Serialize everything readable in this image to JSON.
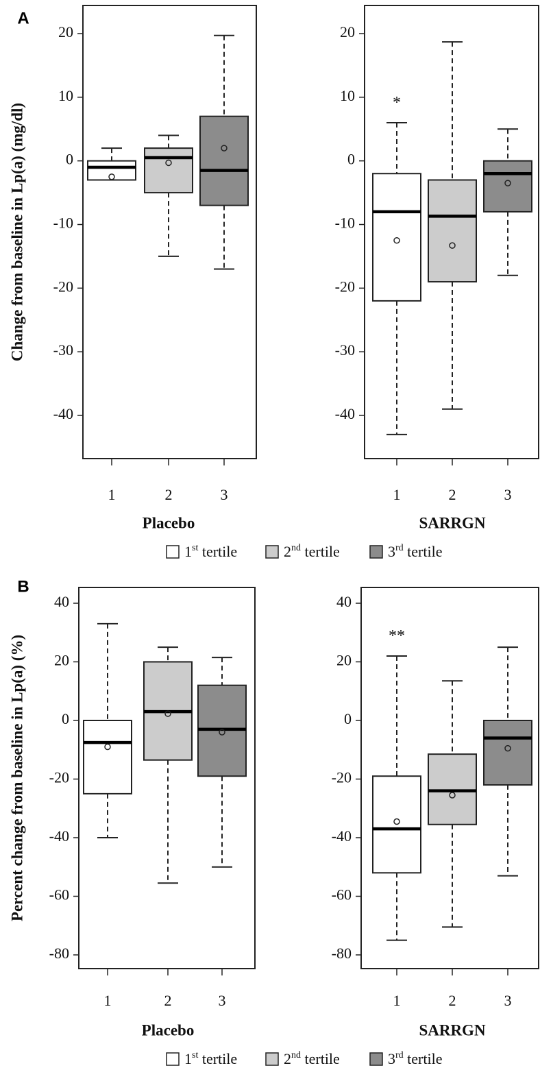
{
  "colors": {
    "tertile1": "#ffffff",
    "tertile2": "#cccccc",
    "tertile3": "#8c8c8c",
    "stroke": "#222222"
  },
  "legend": [
    {
      "num": "1",
      "sup": "st",
      "text": " tertile",
      "color": "#ffffff"
    },
    {
      "num": "2",
      "sup": "nd",
      "text": " tertile",
      "color": "#cccccc"
    },
    {
      "num": "3",
      "sup": "rd",
      "text": " tertile",
      "color": "#8c8c8c"
    }
  ],
  "chart_data": [
    {
      "type": "box",
      "panel_label": "A",
      "ylabel": "Change from baseline in Lp(a) (mg/dl)",
      "ylim": [
        -47.5,
        25
      ],
      "yticks": [
        20,
        10,
        0,
        -10,
        -20,
        -30,
        -40
      ],
      "groups": [
        {
          "name": "Placebo",
          "categories": [
            "1",
            "2",
            "3"
          ],
          "boxes": [
            {
              "whisker_low": -3,
              "q1": -3,
              "median": -1,
              "q3": 0,
              "whisker_high": 2,
              "mean": -2.5
            },
            {
              "whisker_low": -15,
              "q1": -5,
              "median": 0.5,
              "q3": 2,
              "whisker_high": 4,
              "mean": -0.3
            },
            {
              "whisker_low": -17,
              "q1": -7,
              "median": -1.5,
              "q3": 7,
              "whisker_high": 19.7,
              "mean": 2
            }
          ],
          "annotations": []
        },
        {
          "name": "SARRGN",
          "categories": [
            "1",
            "2",
            "3"
          ],
          "boxes": [
            {
              "whisker_low": -43,
              "q1": -22,
              "median": -8,
              "q3": -2,
              "whisker_high": 6,
              "mean": -12.5
            },
            {
              "whisker_low": -39,
              "q1": -19,
              "median": -8.7,
              "q3": -3,
              "whisker_high": 18.7,
              "mean": -13.3
            },
            {
              "whisker_low": -18,
              "q1": -8,
              "median": -2,
              "q3": 0,
              "whisker_high": 5,
              "mean": -3.5
            }
          ],
          "annotations": [
            {
              "category": "1",
              "text": "*"
            }
          ]
        }
      ]
    },
    {
      "type": "box",
      "panel_label": "B",
      "ylabel": "Percent change from baseline in Lp(a) (%)",
      "ylim": [
        -85,
        45
      ],
      "yticks": [
        40,
        20,
        0,
        -20,
        -40,
        -60,
        -80
      ],
      "groups": [
        {
          "name": "Placebo",
          "categories": [
            "1",
            "2",
            "3"
          ],
          "boxes": [
            {
              "whisker_low": -40,
              "q1": -25,
              "median": -7.5,
              "q3": 0,
              "whisker_high": 33,
              "mean": -9
            },
            {
              "whisker_low": -55.5,
              "q1": -13.5,
              "median": 3,
              "q3": 20,
              "whisker_high": 25,
              "mean": 2.3
            },
            {
              "whisker_low": -50,
              "q1": -19,
              "median": -3,
              "q3": 12,
              "whisker_high": 21.5,
              "mean": -4
            }
          ],
          "annotations": []
        },
        {
          "name": "SARRGN",
          "categories": [
            "1",
            "2",
            "3"
          ],
          "boxes": [
            {
              "whisker_low": -75,
              "q1": -52,
              "median": -37,
              "q3": -19,
              "whisker_high": 22,
              "mean": -34.5
            },
            {
              "whisker_low": -70.5,
              "q1": -35.5,
              "median": -24,
              "q3": -11.5,
              "whisker_high": 13.5,
              "mean": -25.5
            },
            {
              "whisker_low": -53,
              "q1": -22,
              "median": -6,
              "q3": 0,
              "whisker_high": 25,
              "mean": -9.5
            }
          ],
          "annotations": [
            {
              "category": "1",
              "text": "**"
            }
          ]
        }
      ]
    }
  ]
}
